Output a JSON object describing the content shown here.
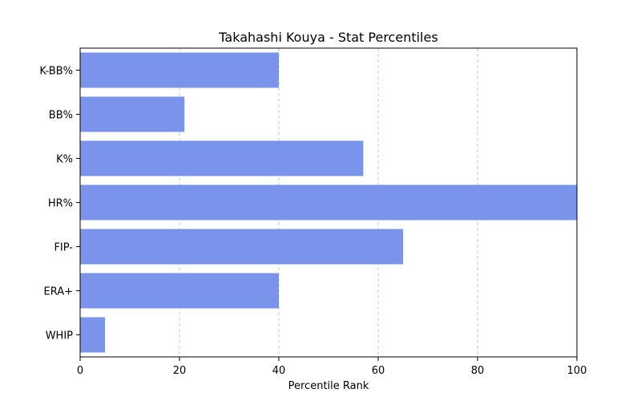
{
  "chart_data": {
    "type": "bar",
    "orientation": "horizontal",
    "title": "Takahashi Kouya - Stat Percentiles",
    "xlabel": "Percentile Rank",
    "ylabel": "",
    "categories": [
      "K-BB%",
      "BB%",
      "K%",
      "HR%",
      "FIP-",
      "ERA+",
      "WHIP"
    ],
    "values": [
      40,
      21,
      57,
      100,
      65,
      40,
      5
    ],
    "xlim": [
      0,
      100
    ],
    "xticks": [
      "0",
      "20",
      "40",
      "60",
      "80",
      "100"
    ],
    "grid": "x-axis dashed",
    "bar_color": "#7994ea"
  }
}
